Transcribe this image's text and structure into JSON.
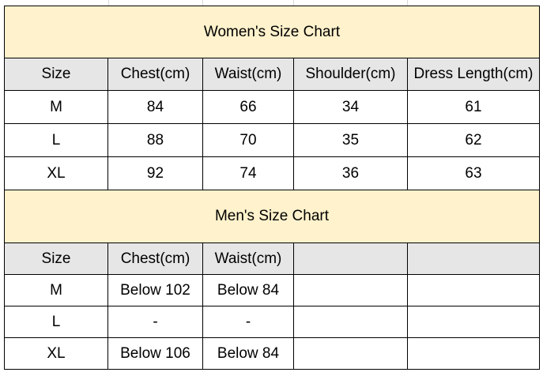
{
  "women": {
    "title": "Women's Size Chart",
    "headers": [
      "Size",
      "Chest(cm)",
      "Waist(cm)",
      "Shoulder(cm)",
      "Dress Length(cm)"
    ],
    "rows": [
      [
        "M",
        "84",
        "66",
        "34",
        "61"
      ],
      [
        "L",
        "88",
        "70",
        "35",
        "62"
      ],
      [
        "XL",
        "92",
        "74",
        "36",
        "63"
      ]
    ]
  },
  "men": {
    "title": "Men's Size Chart",
    "headers": [
      "Size",
      "Chest(cm)",
      "Waist(cm)",
      "",
      ""
    ],
    "rows": [
      [
        "M",
        "Below 102",
        "Below 84",
        "",
        ""
      ],
      [
        "L",
        "-",
        "-",
        "",
        ""
      ],
      [
        "XL",
        "Below 106",
        "Below 84",
        "",
        ""
      ]
    ]
  },
  "colors": {
    "title_fill": "#fff2cc",
    "header_fill": "#e7e6e6",
    "border": "#000000"
  }
}
